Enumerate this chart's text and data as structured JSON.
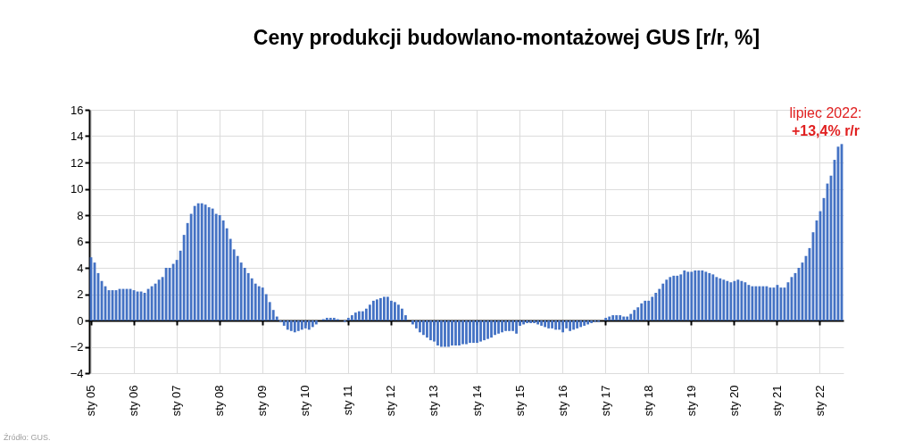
{
  "chart_data": {
    "type": "bar",
    "title": "Ceny produkcji budowlano-montażowej GUS [r/r, %]",
    "categories": [
      "sty 05",
      null,
      null,
      null,
      null,
      null,
      null,
      null,
      null,
      null,
      null,
      null,
      "sty 06",
      null,
      null,
      null,
      null,
      null,
      null,
      null,
      null,
      null,
      null,
      null,
      "sty 07",
      null,
      null,
      null,
      null,
      null,
      null,
      null,
      null,
      null,
      null,
      null,
      "sty 08",
      null,
      null,
      null,
      null,
      null,
      null,
      null,
      null,
      null,
      null,
      null,
      "sty 09",
      null,
      null,
      null,
      null,
      null,
      null,
      null,
      null,
      null,
      null,
      null,
      "sty 10",
      null,
      null,
      null,
      null,
      null,
      null,
      null,
      null,
      null,
      null,
      null,
      "sty 11",
      null,
      null,
      null,
      null,
      null,
      null,
      null,
      null,
      null,
      null,
      null,
      "sty 12",
      null,
      null,
      null,
      null,
      null,
      null,
      null,
      null,
      null,
      null,
      null,
      "sty 13",
      null,
      null,
      null,
      null,
      null,
      null,
      null,
      null,
      null,
      null,
      null,
      "sty 14",
      null,
      null,
      null,
      null,
      null,
      null,
      null,
      null,
      null,
      null,
      null,
      "sty 15",
      null,
      null,
      null,
      null,
      null,
      null,
      null,
      null,
      null,
      null,
      null,
      "sty 16",
      null,
      null,
      null,
      null,
      null,
      null,
      null,
      null,
      null,
      null,
      null,
      "sty 17",
      null,
      null,
      null,
      null,
      null,
      null,
      null,
      null,
      null,
      null,
      null,
      "sty 18",
      null,
      null,
      null,
      null,
      null,
      null,
      null,
      null,
      null,
      null,
      null,
      "sty 19",
      null,
      null,
      null,
      null,
      null,
      null,
      null,
      null,
      null,
      null,
      null,
      "sty 20",
      null,
      null,
      null,
      null,
      null,
      null,
      null,
      null,
      null,
      null,
      null,
      "sty 21",
      null,
      null,
      null,
      null,
      null,
      null,
      null,
      null,
      null,
      null,
      null,
      "sty 22",
      null,
      null,
      null,
      null,
      null,
      null
    ],
    "values": [
      4.8,
      4.4,
      3.6,
      3.0,
      2.6,
      2.3,
      2.3,
      2.3,
      2.4,
      2.4,
      2.4,
      2.4,
      2.3,
      2.2,
      2.2,
      2.1,
      2.4,
      2.6,
      2.8,
      3.1,
      3.3,
      4.0,
      4.0,
      4.3,
      4.6,
      5.3,
      6.5,
      7.4,
      8.1,
      8.7,
      8.9,
      8.9,
      8.8,
      8.6,
      8.5,
      8.1,
      8.0,
      7.6,
      7.0,
      6.2,
      5.4,
      4.9,
      4.4,
      4.0,
      3.6,
      3.2,
      2.8,
      2.6,
      2.5,
      2.0,
      1.4,
      0.8,
      0.3,
      -0.1,
      -0.4,
      -0.7,
      -0.8,
      -0.9,
      -0.8,
      -0.7,
      -0.6,
      -0.7,
      -0.5,
      -0.3,
      0.0,
      0.1,
      0.2,
      0.2,
      0.2,
      0.1,
      0.0,
      -0.1,
      0.2,
      0.4,
      0.6,
      0.7,
      0.7,
      0.9,
      1.2,
      1.5,
      1.6,
      1.7,
      1.8,
      1.8,
      1.5,
      1.4,
      1.2,
      0.9,
      0.4,
      0.0,
      -0.3,
      -0.6,
      -0.9,
      -1.1,
      -1.3,
      -1.5,
      -1.6,
      -1.9,
      -2.0,
      -2.0,
      -2.0,
      -1.9,
      -1.9,
      -1.9,
      -1.8,
      -1.8,
      -1.7,
      -1.7,
      -1.7,
      -1.6,
      -1.5,
      -1.4,
      -1.3,
      -1.1,
      -1.0,
      -0.9,
      -0.8,
      -0.8,
      -0.8,
      -1.0,
      -0.4,
      -0.3,
      -0.2,
      -0.2,
      -0.2,
      -0.3,
      -0.4,
      -0.5,
      -0.6,
      -0.6,
      -0.7,
      -0.7,
      -0.9,
      -0.6,
      -0.8,
      -0.7,
      -0.6,
      -0.5,
      -0.4,
      -0.3,
      -0.2,
      -0.1,
      -0.1,
      0.0,
      0.2,
      0.3,
      0.4,
      0.4,
      0.4,
      0.3,
      0.3,
      0.5,
      0.8,
      1.0,
      1.3,
      1.5,
      1.5,
      1.8,
      2.1,
      2.4,
      2.8,
      3.1,
      3.3,
      3.4,
      3.4,
      3.5,
      3.8,
      3.7,
      3.7,
      3.8,
      3.8,
      3.8,
      3.7,
      3.6,
      3.5,
      3.3,
      3.2,
      3.1,
      3.0,
      2.9,
      3.0,
      3.1,
      3.0,
      2.9,
      2.7,
      2.6,
      2.6,
      2.6,
      2.6,
      2.6,
      2.5,
      2.5,
      2.7,
      2.5,
      2.5,
      2.9,
      3.3,
      3.6,
      4.0,
      4.4,
      4.9,
      5.5,
      6.7,
      7.6,
      8.3,
      9.3,
      10.4,
      11.0,
      12.2,
      13.2,
      13.4
    ],
    "color": "#4472c4",
    "ylim": [
      -4,
      16
    ],
    "yticks": [
      -4,
      -2,
      0,
      2,
      4,
      6,
      8,
      10,
      12,
      14,
      16
    ],
    "grid": true,
    "annotations": [
      "lipiec 2022:",
      "+13,4% r/r",
      "Źródło: GUS."
    ]
  }
}
